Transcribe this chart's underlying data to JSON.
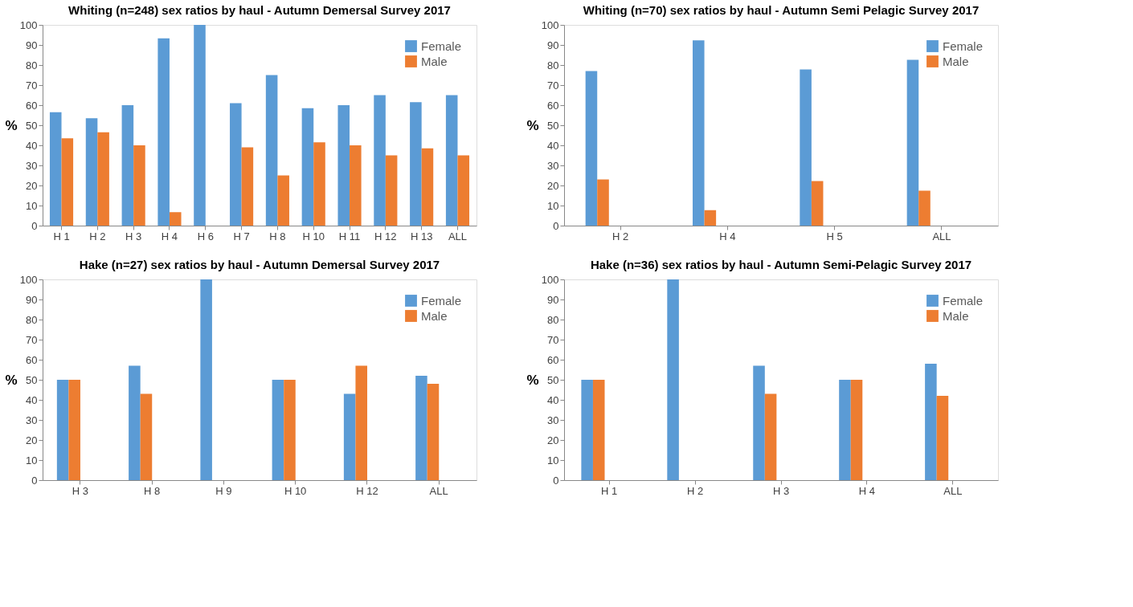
{
  "chart_data": [
    {
      "type": "bar",
      "title": "Whiting (n=248) sex ratios by haul - Autumn Demersal Survey 2017",
      "ylabel": "%",
      "categories": [
        "H 1",
        "H 2",
        "H 3",
        "H 4",
        "H 6",
        "H 7",
        "H 8",
        "H 10",
        "H 11",
        "H 12",
        "H 13",
        "ALL"
      ],
      "series": [
        {
          "name": "Female",
          "color": "#5b9bd5",
          "values": [
            56.5,
            53.5,
            60,
            93.3,
            100,
            61,
            75,
            58.5,
            60,
            65,
            61.5,
            65
          ]
        },
        {
          "name": "Male",
          "color": "#ed7d31",
          "values": [
            43.5,
            46.5,
            40,
            6.7,
            0,
            39,
            25,
            41.5,
            40,
            35,
            38.5,
            35
          ]
        }
      ],
      "ylim": [
        0,
        100
      ],
      "yticks": [
        0,
        10,
        20,
        30,
        40,
        50,
        60,
        70,
        80,
        90,
        100
      ],
      "grid": false,
      "legend": "top right"
    },
    {
      "type": "bar",
      "title": "Whiting (n=70) sex ratios by haul - Autumn Semi Pelagic Survey 2017",
      "ylabel": "%",
      "categories": [
        "H 2",
        "H 4",
        "H 5",
        "ALL"
      ],
      "series": [
        {
          "name": "Female",
          "color": "#5b9bd5",
          "values": [
            77,
            92.3,
            77.8,
            82.6
          ]
        },
        {
          "name": "Male",
          "color": "#ed7d31",
          "values": [
            23,
            7.7,
            22.2,
            17.4
          ]
        }
      ],
      "ylim": [
        0,
        100
      ],
      "yticks": [
        0,
        10,
        20,
        30,
        40,
        50,
        60,
        70,
        80,
        90,
        100
      ],
      "grid": false,
      "legend": "top right"
    },
    {
      "type": "bar",
      "title": "Hake (n=27) sex ratios by haul - Autumn Demersal Survey 2017",
      "ylabel": "%",
      "categories": [
        "H 3",
        "H 8",
        "H 9",
        "H 10",
        "H 12",
        "ALL"
      ],
      "series": [
        {
          "name": "Female",
          "color": "#5b9bd5",
          "values": [
            50,
            57,
            100,
            50,
            43,
            52
          ]
        },
        {
          "name": "Male",
          "color": "#ed7d31",
          "values": [
            50,
            43,
            0,
            50,
            57,
            48
          ]
        }
      ],
      "ylim": [
        0,
        100
      ],
      "yticks": [
        0,
        10,
        20,
        30,
        40,
        50,
        60,
        70,
        80,
        90,
        100
      ],
      "grid": false,
      "legend": "top right"
    },
    {
      "type": "bar",
      "title": "Hake (n=36) sex ratios by haul - Autumn Semi-Pelagic Survey 2017",
      "ylabel": "%",
      "categories": [
        "H 1",
        "H 2",
        "H 3",
        "H 4",
        "ALL"
      ],
      "series": [
        {
          "name": "Female",
          "color": "#5b9bd5",
          "values": [
            50,
            100,
            57,
            50,
            58
          ]
        },
        {
          "name": "Male",
          "color": "#ed7d31",
          "values": [
            50,
            0,
            43,
            50,
            42
          ]
        }
      ],
      "ylim": [
        0,
        100
      ],
      "yticks": [
        0,
        10,
        20,
        30,
        40,
        50,
        60,
        70,
        80,
        90,
        100
      ],
      "grid": false,
      "legend": "top right"
    }
  ]
}
